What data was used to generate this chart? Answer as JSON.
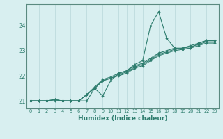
{
  "x_values": [
    0,
    1,
    2,
    3,
    4,
    5,
    6,
    7,
    8,
    9,
    10,
    11,
    12,
    13,
    14,
    15,
    16,
    17,
    18,
    19,
    20,
    21,
    22,
    23
  ],
  "line1": [
    21.0,
    21.0,
    21.0,
    21.0,
    21.0,
    21.0,
    21.0,
    21.0,
    21.5,
    21.2,
    21.8,
    22.1,
    22.2,
    22.45,
    22.6,
    24.0,
    24.55,
    23.5,
    23.1,
    23.05,
    23.1,
    23.3,
    23.4,
    23.4
  ],
  "line2": [
    21.0,
    21.0,
    21.0,
    21.05,
    21.0,
    21.0,
    21.0,
    21.25,
    21.55,
    21.85,
    21.95,
    22.1,
    22.2,
    22.4,
    22.5,
    22.7,
    22.9,
    23.0,
    23.1,
    23.1,
    23.2,
    23.3,
    23.4,
    23.4
  ],
  "line3": [
    21.0,
    21.0,
    21.0,
    21.05,
    21.0,
    21.0,
    21.0,
    21.25,
    21.5,
    21.8,
    21.9,
    22.05,
    22.15,
    22.35,
    22.45,
    22.65,
    22.85,
    22.95,
    23.05,
    23.1,
    23.15,
    23.25,
    23.35,
    23.35
  ],
  "line4": [
    21.0,
    21.0,
    21.0,
    21.05,
    21.0,
    21.0,
    21.0,
    21.25,
    21.5,
    21.8,
    21.9,
    22.0,
    22.1,
    22.3,
    22.4,
    22.6,
    22.8,
    22.9,
    23.0,
    23.05,
    23.1,
    23.2,
    23.3,
    23.3
  ],
  "line_color": "#2e7d6e",
  "bg_color": "#d8eff0",
  "grid_color": "#b8d8da",
  "xlabel": "Humidex (Indice chaleur)",
  "xlim": [
    -0.5,
    23.5
  ],
  "ylim": [
    20.7,
    24.85
  ],
  "yticks": [
    21,
    22,
    23,
    24
  ],
  "xticks": [
    0,
    1,
    2,
    3,
    4,
    5,
    6,
    7,
    8,
    9,
    10,
    11,
    12,
    13,
    14,
    15,
    16,
    17,
    18,
    19,
    20,
    21,
    22,
    23
  ]
}
